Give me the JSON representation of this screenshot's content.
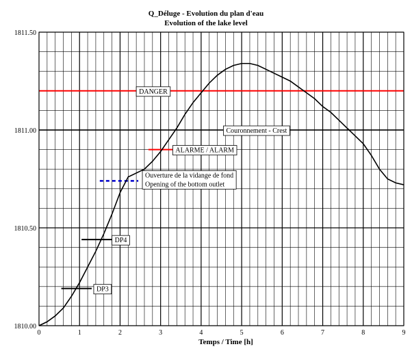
{
  "chart_data": {
    "type": "line",
    "title": "Q_Déluge    -    Evolution du plan d'eau",
    "subtitle": "Evolution of the lake level",
    "xlabel": "Temps / Time [h]",
    "ylabel": "",
    "xlim": [
      0,
      9
    ],
    "ylim": [
      1810.0,
      1811.5
    ],
    "x_major_ticks": [
      0,
      1,
      2,
      3,
      4,
      5,
      6,
      7,
      8,
      9
    ],
    "x_tick_labels": [
      "0",
      "1",
      "2",
      "3",
      "4",
      "5",
      "6",
      "7",
      "8",
      "9"
    ],
    "x_minor_step": 0.2,
    "y_major_ticks": [
      1810.0,
      1810.5,
      1811.0,
      1811.5
    ],
    "y_tick_labels": [
      "1810.00",
      "1810.50",
      "1811.00",
      "1811.50"
    ],
    "y_minor_step": 0.1,
    "grid": true,
    "series": [
      {
        "color": "#000000",
        "x": [
          0,
          0.2,
          0.4,
          0.6,
          0.8,
          1.0,
          1.2,
          1.4,
          1.6,
          1.8,
          2.0,
          2.2,
          2.4,
          2.6,
          2.8,
          3.0,
          3.2,
          3.4,
          3.6,
          3.8,
          4.0,
          4.2,
          4.4,
          4.6,
          4.8,
          5.0,
          5.2,
          5.4,
          5.6,
          5.8,
          6.0,
          6.2,
          6.4,
          6.6,
          6.8,
          7.0,
          7.2,
          7.4,
          7.6,
          7.8,
          8.0,
          8.2,
          8.4,
          8.6,
          8.8,
          9.0
        ],
        "y": [
          1810.0,
          1810.02,
          1810.05,
          1810.09,
          1810.15,
          1810.22,
          1810.3,
          1810.38,
          1810.47,
          1810.57,
          1810.68,
          1810.76,
          1810.78,
          1810.8,
          1810.84,
          1810.89,
          1810.95,
          1811.01,
          1811.08,
          1811.14,
          1811.19,
          1811.24,
          1811.28,
          1811.31,
          1811.33,
          1811.34,
          1811.34,
          1811.33,
          1811.31,
          1811.29,
          1811.27,
          1811.25,
          1811.22,
          1811.19,
          1811.16,
          1811.12,
          1811.09,
          1811.05,
          1811.01,
          1810.97,
          1810.93,
          1810.87,
          1810.8,
          1810.75,
          1810.73,
          1810.72
        ]
      }
    ],
    "horizontal_lines": [
      {
        "label": "DANGER",
        "y": 1811.2,
        "x0": 0,
        "x1": 9,
        "color": "#ff0000",
        "style": "solid",
        "label_x": 2.4
      },
      {
        "label": "Couronnement - Crest",
        "y": 1811.0,
        "x0": 0,
        "x1": 9,
        "color": "#000000",
        "style": "solid",
        "label_x": 4.55
      },
      {
        "label": "ALARME / ALARM",
        "y": 1810.9,
        "x0": 2.7,
        "x1": 3.3,
        "color": "#ff0000",
        "style": "solid",
        "label_x": 3.3
      },
      {
        "label": "Ouverture de la vidange de fond",
        "label2": "Opening of the bottom outlet",
        "y": 1810.74,
        "x0": 1.5,
        "x1": 2.45,
        "color": "#0000cc",
        "style": "dashed",
        "label_x": 2.55
      },
      {
        "label": "DP4",
        "y": 1810.44,
        "x0": 1.05,
        "x1": 1.8,
        "color": "#000000",
        "style": "solid",
        "label_x": 1.8
      },
      {
        "label": "DP3",
        "y": 1810.19,
        "x0": 0.55,
        "x1": 1.3,
        "color": "#000000",
        "style": "solid",
        "label_x": 1.35
      }
    ]
  }
}
